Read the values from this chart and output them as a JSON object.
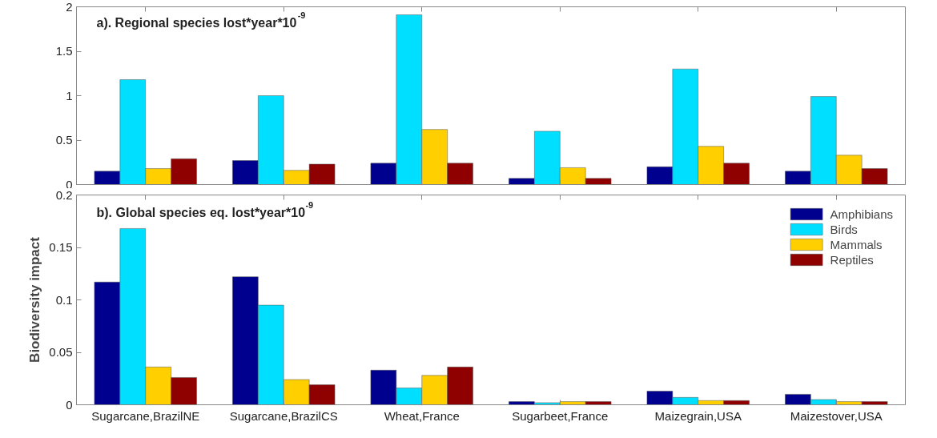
{
  "chart_data": [
    {
      "type": "bar",
      "annotations": [
        "a). Regional species lost*year*10$^{-9}$"
      ],
      "categories": [
        null,
        null,
        null,
        null,
        null,
        null
      ],
      "series": [
        {
          "color": "#00008f",
          "values": [
            0.15,
            0.27,
            0.24,
            0.07,
            0.2,
            0.15
          ]
        },
        {
          "color": "#00dfff",
          "values": [
            1.18,
            1.0,
            1.91,
            0.6,
            1.3,
            0.99
          ]
        },
        {
          "color": "#ffcf00",
          "values": [
            0.18,
            0.16,
            0.62,
            0.19,
            0.43,
            0.33
          ]
        },
        {
          "color": "#8f0000",
          "values": [
            0.29,
            0.23,
            0.24,
            0.07,
            0.24,
            0.18
          ]
        }
      ],
      "ylim": [
        0,
        2
      ],
      "yticks": [
        0,
        0.5,
        1,
        1.5,
        2
      ],
      "tick_labels": "y",
      "grid": false,
      "legend": false
    },
    {
      "type": "bar",
      "ylabel": "Biodiversity impact",
      "annotations": [
        "b). Global species eq. lost*year*10$^{-9}$"
      ],
      "categories": [
        "Sugarcane,BrazilNE",
        "Sugarcane,BrazilCS",
        "Wheat,France",
        "Sugarbeet,France",
        "Maizegrain,USA",
        "Maizestover,USA"
      ],
      "series": [
        {
          "name": "Amphibians",
          "color": "#00008f",
          "values": [
            0.117,
            0.122,
            0.033,
            0.003,
            0.013,
            0.01
          ]
        },
        {
          "name": "Birds",
          "color": "#00dfff",
          "values": [
            0.168,
            0.095,
            0.016,
            0.002,
            0.007,
            0.005
          ]
        },
        {
          "name": "Mammals",
          "color": "#ffcf00",
          "values": [
            0.036,
            0.024,
            0.028,
            0.003,
            0.004,
            0.003
          ]
        },
        {
          "name": "Reptiles",
          "color": "#8f0000",
          "values": [
            0.026,
            0.019,
            0.036,
            0.003,
            0.004,
            0.003
          ]
        }
      ],
      "ylim": [
        0,
        0.2
      ],
      "yticks": [
        0,
        0.05,
        0.1,
        0.15,
        0.2
      ],
      "grid": false,
      "legend": "top right"
    }
  ]
}
